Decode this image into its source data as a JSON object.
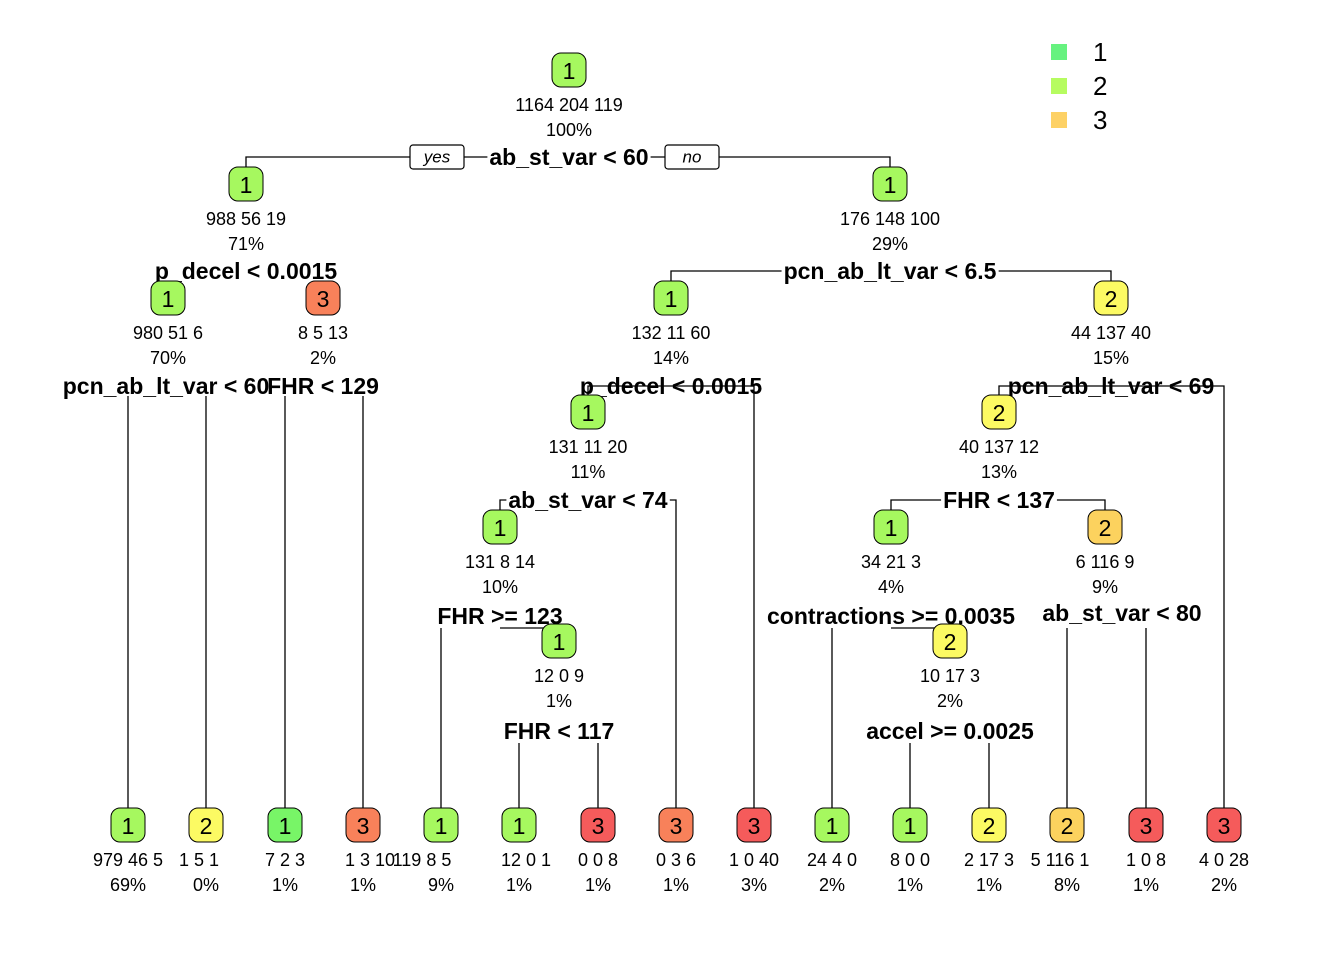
{
  "colors": {
    "legend": {
      "1": "#66f27f",
      "2": "#b6fc60",
      "3": "#fdd165"
    },
    "node_fill": {
      "lgreen": "#a6f85f",
      "green": "#78f567",
      "yellow": "#fcfa63",
      "orange": "#fcd25e",
      "salmon": "#f8815a",
      "red": "#f55b5b"
    }
  },
  "legend": {
    "entries": [
      {
        "key": "1",
        "label": "1"
      },
      {
        "key": "2",
        "label": "2"
      },
      {
        "key": "3",
        "label": "3"
      }
    ]
  },
  "edge_labels": {
    "yes": "yes",
    "no": "no"
  },
  "nodes": [
    {
      "id": "root",
      "cls": "1",
      "fill": "lgreen",
      "counts": "1164  204  119",
      "pct": "100%",
      "rule": "ab_st_var < 60"
    },
    {
      "id": "n2",
      "cls": "1",
      "fill": "lgreen",
      "counts": "988  56  19",
      "pct": "71%",
      "rule": "p_decel < 0.0015"
    },
    {
      "id": "n3",
      "cls": "1",
      "fill": "lgreen",
      "counts": "176  148  100",
      "pct": "29%",
      "rule": "pcn_ab_lt_var < 6.5"
    },
    {
      "id": "n4",
      "cls": "1",
      "fill": "lgreen",
      "counts": "980  51  6",
      "pct": "70%",
      "rule": "pcn_ab_lt_var < 60"
    },
    {
      "id": "n5",
      "cls": "3",
      "fill": "salmon",
      "counts": "8  5  13",
      "pct": "2%",
      "rule": "FHR < 129"
    },
    {
      "id": "n6",
      "cls": "1",
      "fill": "lgreen",
      "counts": "132  11  60",
      "pct": "14%",
      "rule": "p_decel < 0.0015"
    },
    {
      "id": "n7",
      "cls": "2",
      "fill": "yellow",
      "counts": "44  137  40",
      "pct": "15%",
      "rule": "pcn_ab_lt_var < 69"
    },
    {
      "id": "n12",
      "cls": "1",
      "fill": "lgreen",
      "counts": "131  11  20",
      "pct": "11%",
      "rule": "ab_st_var < 74"
    },
    {
      "id": "n14",
      "cls": "2",
      "fill": "yellow",
      "counts": "40  137  12",
      "pct": "13%",
      "rule": "FHR < 137"
    },
    {
      "id": "n24",
      "cls": "1",
      "fill": "lgreen",
      "counts": "131  8  14",
      "pct": "10%",
      "rule": "FHR >= 123"
    },
    {
      "id": "n28",
      "cls": "1",
      "fill": "lgreen",
      "counts": "34  21  3",
      "pct": "4%",
      "rule": "contractions >= 0.0035"
    },
    {
      "id": "n29",
      "cls": "2",
      "fill": "orange",
      "counts": "6  116  9",
      "pct": "9%",
      "rule": "ab_st_var < 80"
    },
    {
      "id": "n49",
      "cls": "1",
      "fill": "lgreen",
      "counts": "12  0  9",
      "pct": "1%",
      "rule": "FHR < 117"
    },
    {
      "id": "n57",
      "cls": "2",
      "fill": "yellow",
      "counts": "10  17  3",
      "pct": "2%",
      "rule": "accel >= 0.0025"
    },
    {
      "id": "l1",
      "cls": "1",
      "fill": "lgreen",
      "counts": "979  46  5",
      "pct": "69%"
    },
    {
      "id": "l2",
      "cls": "2",
      "fill": "yellow",
      "counts": "1  5  1",
      "pct": "0%"
    },
    {
      "id": "l3",
      "cls": "1",
      "fill": "green",
      "counts": "7  2  3",
      "pct": "1%"
    },
    {
      "id": "l4",
      "cls": "3",
      "fill": "salmon",
      "counts": "1  3  10",
      "pct": "1%"
    },
    {
      "id": "l5",
      "cls": "1",
      "fill": "lgreen",
      "counts": "119  8  5",
      "pct": "9%"
    },
    {
      "id": "l6",
      "cls": "1",
      "fill": "lgreen",
      "counts": "12  0  1",
      "pct": "1%"
    },
    {
      "id": "l7",
      "cls": "3",
      "fill": "red",
      "counts": "0  0  8",
      "pct": "1%"
    },
    {
      "id": "l8",
      "cls": "3",
      "fill": "salmon",
      "counts": "0  3  6",
      "pct": "1%"
    },
    {
      "id": "l9",
      "cls": "3",
      "fill": "red",
      "counts": "1  0  40",
      "pct": "3%"
    },
    {
      "id": "l10",
      "cls": "1",
      "fill": "lgreen",
      "counts": "24  4  0",
      "pct": "2%"
    },
    {
      "id": "l11",
      "cls": "1",
      "fill": "lgreen",
      "counts": "8  0  0",
      "pct": "1%"
    },
    {
      "id": "l12",
      "cls": "2",
      "fill": "yellow",
      "counts": "2  17  3",
      "pct": "1%"
    },
    {
      "id": "l13",
      "cls": "2",
      "fill": "orange",
      "counts": "5  116  1",
      "pct": "8%"
    },
    {
      "id": "l14",
      "cls": "3",
      "fill": "red",
      "counts": "1  0  8",
      "pct": "1%"
    },
    {
      "id": "l15",
      "cls": "3",
      "fill": "red",
      "counts": "4  0  28",
      "pct": "2%"
    }
  ]
}
